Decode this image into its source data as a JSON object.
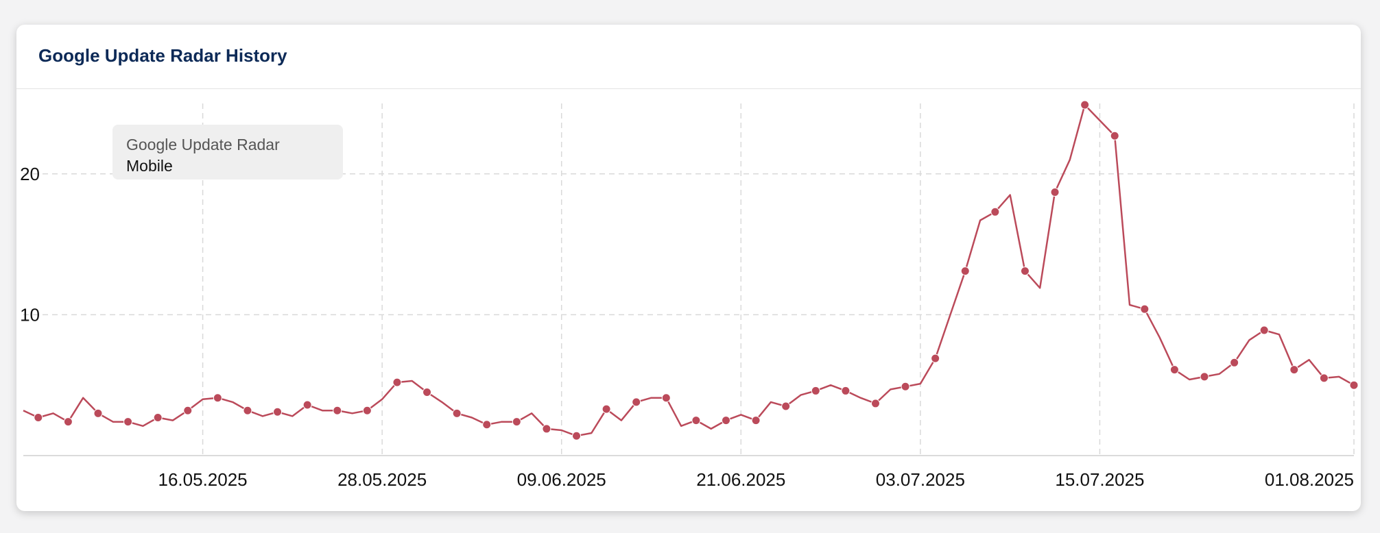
{
  "card": {
    "title": "Google Update Radar History"
  },
  "legend": {
    "title": "Google Update Radar",
    "series_label": "Mobile"
  },
  "colors": {
    "series": "#bb4a5a",
    "grid": "#d9d9d9",
    "title": "#0d2a57"
  },
  "chart_data": {
    "type": "line",
    "title": "Google Update Radar History",
    "xlabel": "",
    "ylabel": "",
    "ylim": [
      0,
      25
    ],
    "yticks": [
      10,
      20
    ],
    "x_tick_labels": [
      "16.05.2025",
      "28.05.2025",
      "09.06.2025",
      "21.06.2025",
      "03.07.2025",
      "15.07.2025",
      "01.08.2025"
    ],
    "x_tick_index": [
      12,
      24,
      36,
      48,
      60,
      72,
      89
    ],
    "grid": true,
    "legend_placement": "top-left",
    "series": [
      {
        "name": "Mobile",
        "values": [
          3.2,
          2.7,
          3.0,
          2.4,
          4.1,
          3.0,
          2.4,
          2.4,
          2.1,
          2.7,
          2.5,
          3.2,
          4.0,
          4.1,
          3.8,
          3.2,
          2.8,
          3.1,
          2.8,
          3.6,
          3.2,
          3.2,
          3.0,
          3.2,
          4.0,
          5.2,
          5.3,
          4.5,
          3.8,
          3.0,
          2.7,
          2.2,
          2.4,
          2.4,
          3.0,
          1.9,
          1.8,
          1.4,
          1.6,
          3.3,
          2.5,
          3.8,
          4.1,
          4.1,
          2.1,
          2.5,
          1.9,
          2.5,
          2.9,
          2.5,
          3.8,
          3.5,
          4.3,
          4.6,
          5.0,
          4.6,
          4.1,
          3.7,
          4.7,
          4.9,
          5.1,
          6.9,
          10.0,
          13.1,
          16.7,
          17.3,
          18.5,
          13.1,
          11.9,
          18.7,
          21.0,
          24.9,
          23.8,
          22.7,
          10.7,
          10.4,
          8.4,
          6.1,
          5.4,
          5.6,
          5.8,
          6.6,
          8.2,
          8.9,
          8.6,
          6.1,
          6.8,
          5.5,
          5.6,
          5.0
        ],
        "markers": [
          1,
          3,
          5,
          7,
          9,
          11,
          13,
          15,
          17,
          19,
          21,
          23,
          25,
          27,
          29,
          31,
          33,
          35,
          37,
          39,
          41,
          43,
          45,
          47,
          49,
          51,
          53,
          55,
          57,
          59,
          61,
          63,
          65,
          67,
          69,
          71,
          73,
          75,
          77,
          79,
          81,
          83,
          85,
          87,
          89
        ]
      }
    ]
  }
}
